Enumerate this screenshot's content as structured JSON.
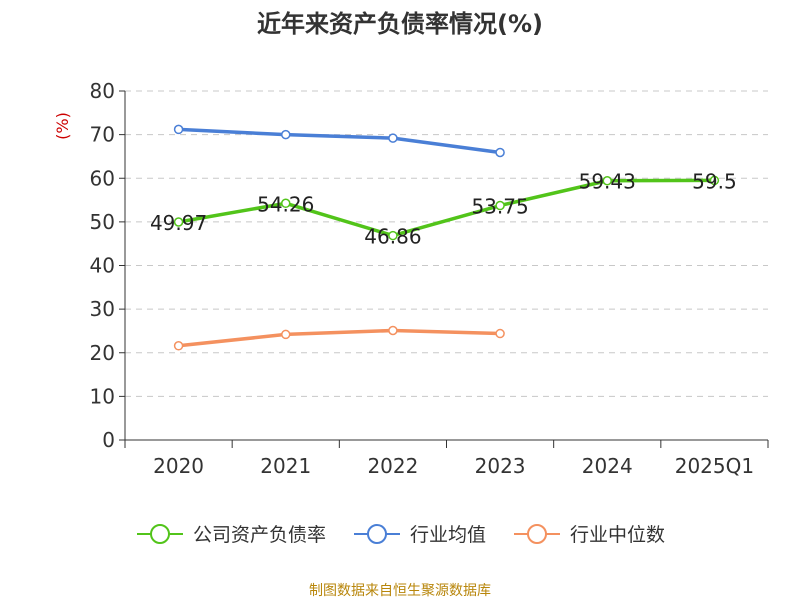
{
  "title": "近年来资产负债率情况(%)",
  "source_note": "制图数据来自恒生聚源数据库",
  "chart_data": {
    "type": "line",
    "title": "近年来资产负债率情况(%)",
    "ylabel": "(%)",
    "xlabel": "",
    "categories": [
      "2020",
      "2021",
      "2022",
      "2023",
      "2024",
      "2025Q1"
    ],
    "ylim": [
      0,
      80
    ],
    "yticks": [
      "0",
      "10",
      "20",
      "30",
      "40",
      "50",
      "60",
      "70",
      "80"
    ],
    "grid": true,
    "legend_position": "bottom",
    "series": [
      {
        "name": "公司资产负债率",
        "color": "#52c41a",
        "values": [
          49.97,
          54.26,
          46.86,
          53.75,
          59.43,
          59.5
        ],
        "labels": [
          "49.97",
          "54.26",
          "46.86",
          "53.75",
          "59.43",
          "59.5"
        ]
      },
      {
        "name": "行业均值",
        "color": "#4a7fd6",
        "values": [
          71.2,
          70.0,
          69.2,
          65.9,
          null,
          null
        ]
      },
      {
        "name": "行业中位数",
        "color": "#f4915f",
        "values": [
          21.6,
          24.2,
          25.1,
          24.4,
          null,
          null
        ]
      }
    ]
  }
}
